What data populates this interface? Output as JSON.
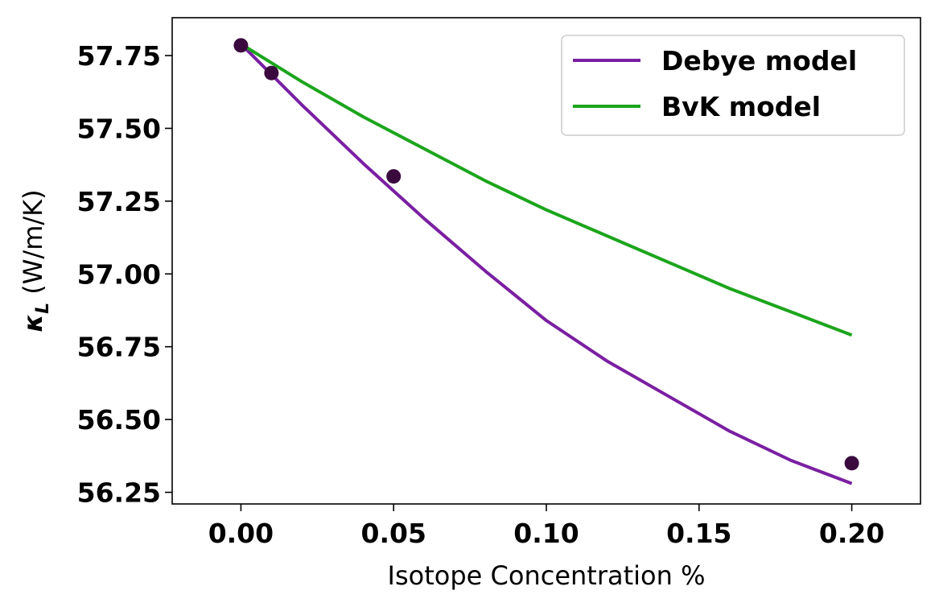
{
  "chart_data": {
    "type": "line",
    "xlabel": "Isotope Concentration %",
    "ylabel_symbol": "κ",
    "ylabel_subscript": "L",
    "ylabel_unit": "(W/m/K)",
    "xlim": [
      -0.0225,
      0.2225
    ],
    "ylim": [
      56.21,
      57.88
    ],
    "xticks": [
      0.0,
      0.05,
      0.1,
      0.15,
      0.2
    ],
    "xtick_labels": [
      "0.00",
      "0.05",
      "0.10",
      "0.15",
      "0.20"
    ],
    "yticks": [
      56.25,
      56.5,
      56.75,
      57.0,
      57.25,
      57.5,
      57.75
    ],
    "ytick_labels": [
      "56.25",
      "56.50",
      "56.75",
      "57.00",
      "57.25",
      "57.50",
      "57.75"
    ],
    "grid": false,
    "legend_position": "top-right",
    "series": [
      {
        "name": "Debye model",
        "kind": "line",
        "color": "#7a1fa2",
        "x": [
          0.0,
          0.02,
          0.04,
          0.06,
          0.08,
          0.1,
          0.12,
          0.14,
          0.16,
          0.18,
          0.2
        ],
        "y": [
          57.79,
          57.58,
          57.38,
          57.19,
          57.01,
          56.84,
          56.7,
          56.58,
          56.46,
          56.36,
          56.28
        ]
      },
      {
        "name": "BvK model",
        "kind": "line",
        "color": "#1ca51c",
        "x": [
          0.0,
          0.02,
          0.04,
          0.06,
          0.08,
          0.1,
          0.12,
          0.14,
          0.16,
          0.18,
          0.2
        ],
        "y": [
          57.79,
          57.66,
          57.54,
          57.43,
          57.32,
          57.22,
          57.13,
          57.04,
          56.95,
          56.87,
          56.79
        ]
      },
      {
        "kind": "scatter",
        "color": "#3a0a3e",
        "x": [
          0.0,
          0.01,
          0.05,
          0.2
        ],
        "y": [
          57.785,
          57.69,
          57.335,
          56.35
        ]
      }
    ]
  }
}
